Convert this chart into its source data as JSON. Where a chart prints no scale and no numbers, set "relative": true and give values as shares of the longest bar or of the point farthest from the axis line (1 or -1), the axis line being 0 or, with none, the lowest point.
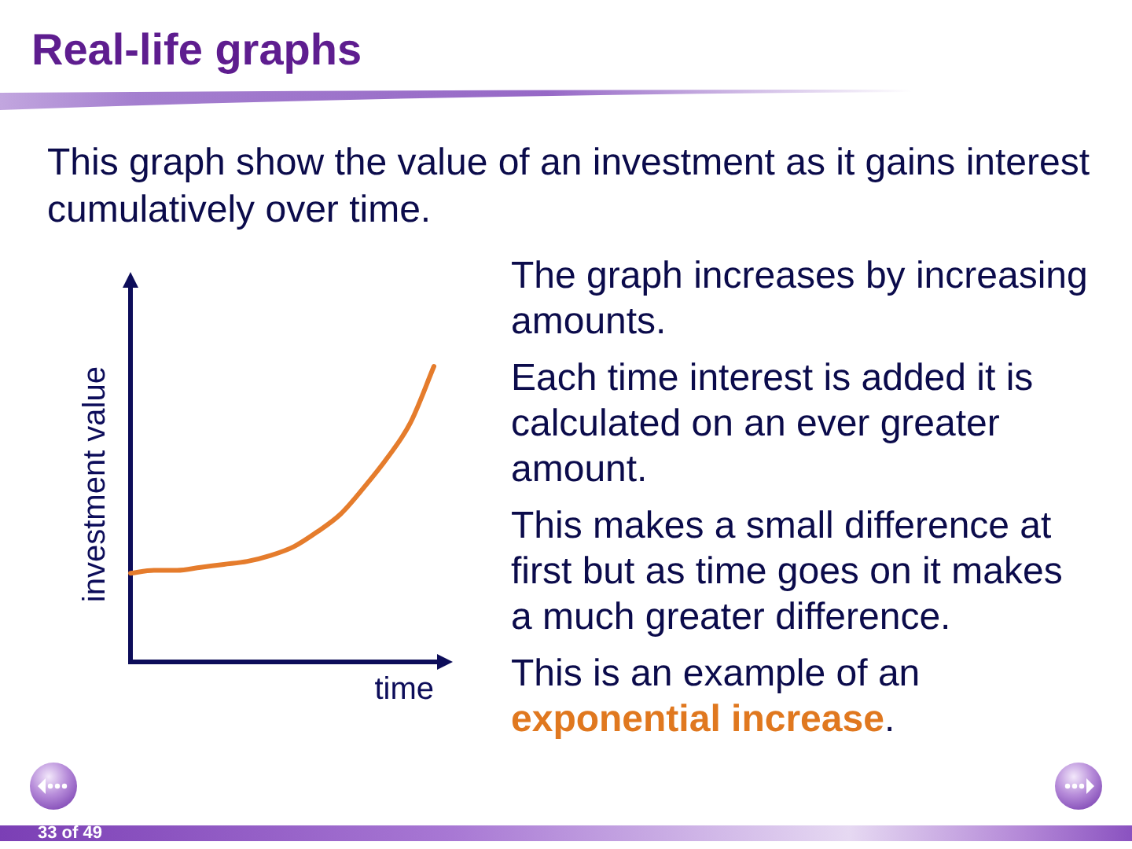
{
  "chart_data": {
    "type": "line",
    "title": "Real-life graphs",
    "subtitle": "This graph show the value of an investment as it gains interest cumulatively over time.",
    "xlabel": "time",
    "ylabel": "investment value",
    "categories": [
      null,
      null,
      null,
      null,
      null,
      null,
      null,
      null,
      null,
      null,
      null,
      null,
      null,
      null
    ],
    "series": [
      {
        "color": "#e57c2c",
        "values": [
          0.3,
          0.31,
          0.31,
          0.32,
          0.33,
          0.34,
          0.36,
          0.39,
          0.44,
          0.5,
          0.59,
          0.69,
          0.81,
          1
        ]
      }
    ],
    "relative": true,
    "marker": "none",
    "annotations": [
      "The graph increases by increasing amounts.",
      "Each time interest is added it is calculated on an ever greater amount.",
      "This makes a small difference at first but as time goes on it makes a much greater difference.",
      "This is an example of an",
      "exponential increase",
      ".",
      "33 of 49"
    ]
  }
}
